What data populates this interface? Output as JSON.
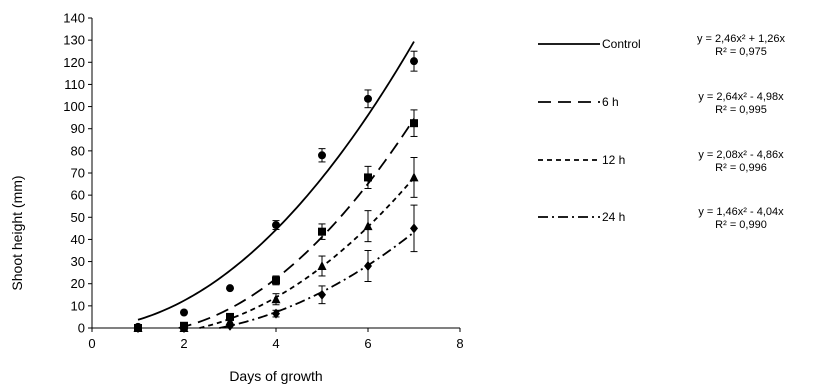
{
  "chart_data": {
    "type": "scatter",
    "title": "",
    "xlabel": "Days of growth",
    "ylabel": "Shoot height (mm)",
    "xlim": [
      0,
      8
    ],
    "ylim": [
      0,
      140
    ],
    "x_ticks": [
      0,
      2,
      4,
      6,
      8
    ],
    "y_ticks": [
      0,
      10,
      20,
      30,
      40,
      50,
      60,
      70,
      80,
      90,
      100,
      110,
      120,
      130,
      140
    ],
    "grid": false,
    "legend_position": "right",
    "x": [
      1,
      2,
      3,
      4,
      5,
      6,
      7
    ],
    "series": [
      {
        "name": "Control",
        "marker": "circle",
        "line_style": "solid",
        "values": [
          0.5,
          7,
          18,
          46.5,
          78,
          103.5,
          120.5
        ],
        "errors": [
          0.5,
          0.5,
          1,
          2,
          3,
          4,
          4.5
        ],
        "fit": {
          "a": 2.46,
          "b": 1.26
        },
        "equation": "y = 2,46x² + 1,26x",
        "r2": "R² = 0,975"
      },
      {
        "name": "6 h",
        "marker": "square",
        "line_style": "long-dash",
        "values": [
          0,
          1,
          5,
          21.5,
          43.5,
          68,
          92.5
        ],
        "errors": [
          0.3,
          0.5,
          1,
          2,
          3.5,
          5,
          6
        ],
        "fit": {
          "a": 2.64,
          "b": -4.98
        },
        "equation": "y = 2,64x² - 4,98x",
        "r2": "R² = 0,995"
      },
      {
        "name": "12 h",
        "marker": "triangle",
        "line_style": "short-dash",
        "values": [
          0,
          0,
          3,
          13,
          28,
          46,
          68
        ],
        "errors": [
          0.3,
          0.3,
          1,
          2.5,
          4.5,
          7,
          9
        ],
        "fit": {
          "a": 2.08,
          "b": -4.86
        },
        "equation": "y = 2,08x² - 4,86x",
        "r2": "R² = 0,996"
      },
      {
        "name": "24 h",
        "marker": "diamond",
        "line_style": "dash-dot",
        "values": [
          0,
          0,
          1,
          6.5,
          15,
          28,
          45
        ],
        "errors": [
          0.3,
          0.3,
          0.5,
          1.5,
          4,
          7,
          10.5
        ],
        "fit": {
          "a": 1.46,
          "b": -4.04
        },
        "equation": "y = 1,46x² - 4,04x",
        "r2": "R² = 0,990"
      }
    ]
  }
}
